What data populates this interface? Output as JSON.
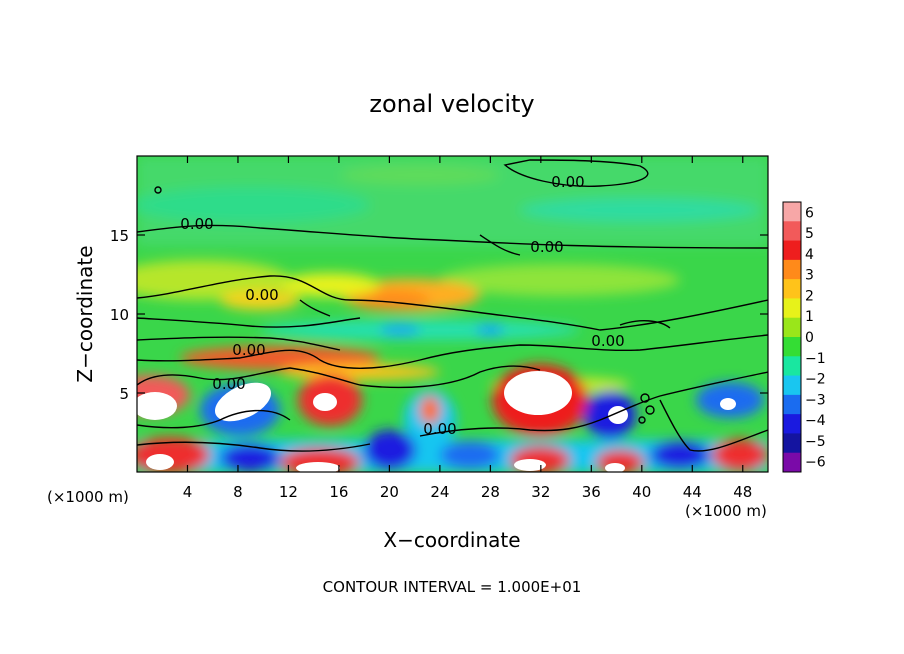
{
  "chart_data": {
    "type": "heatmap",
    "title": "zonal velocity",
    "xlabel": "X−coordinate",
    "ylabel": "Z−coordinate",
    "x_unit_left": "(×1000 m)",
    "x_unit_right": "(×1000 m)",
    "xlim": [
      0,
      50
    ],
    "ylim": [
      0,
      20
    ],
    "xticks": [
      4,
      8,
      12,
      16,
      20,
      24,
      28,
      32,
      36,
      40,
      44,
      48
    ],
    "yticks": [
      5,
      10,
      15
    ],
    "colorbar": {
      "levels": [
        6,
        5,
        4,
        3,
        2,
        1,
        0,
        -1,
        -2,
        -3,
        -4,
        -5,
        -6
      ],
      "colors": [
        "#f7a7a7",
        "#f25a5a",
        "#ee1e1e",
        "#ff8a1a",
        "#ffc31a",
        "#e7f21a",
        "#9ae61a",
        "#34dd34",
        "#19e7a0",
        "#19c6f0",
        "#1a6cf0",
        "#1a1ae0",
        "#1414a0",
        "#7a0aa8"
      ]
    },
    "contour_labels": [
      "0.00",
      "0.00",
      "0.00",
      "0.00",
      "0.00",
      "0.00",
      "0.00",
      "0.00"
    ],
    "contour_interval_text": "CONTOUR INTERVAL = 1.000E+01"
  }
}
